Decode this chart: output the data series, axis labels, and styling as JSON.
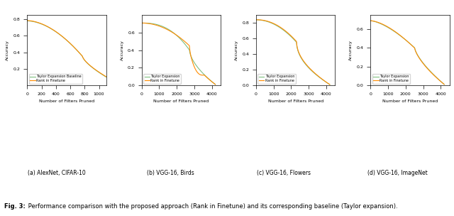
{
  "fig_width": 6.4,
  "fig_height": 3.04,
  "dpi": 100,
  "subplots": [
    {
      "title": "(a) AlexNet, CIFAR-10",
      "xlabel": "Number of Filters Pruned",
      "ylabel": "Accuracy",
      "xlim": [
        0,
        1100
      ],
      "ylim": [
        0.0,
        0.85
      ],
      "xticks": [
        0,
        200,
        400,
        600,
        800,
        1000
      ],
      "yticks": [
        0.2,
        0.4,
        0.6,
        0.8
      ],
      "lines": [
        {
          "label": "Taylor Expansion Baseline",
          "color": "#7fbf7f",
          "x_start": 0,
          "x_end": 1100,
          "y_start": 0.78,
          "y_end": 0.1,
          "shape": "concave_down"
        },
        {
          "label": "Rank in Finetune",
          "color": "#ff8c00",
          "x_start": 0,
          "x_end": 1100,
          "y_start": 0.78,
          "y_end": 0.1,
          "shape": "concave_down_slight_higher"
        }
      ]
    },
    {
      "title": "(b) VGG-16, Birds",
      "xlabel": "Number of Filters Pruned",
      "ylabel": "Accuracy",
      "xlim": [
        0,
        4500
      ],
      "ylim": [
        0.0,
        0.8
      ],
      "xticks": [
        0,
        1000,
        2000,
        3000,
        4000
      ],
      "yticks": [
        0.0,
        0.2,
        0.4,
        0.6
      ],
      "lines": [
        {
          "label": "Taylor Expansion",
          "color": "#7fbf7f",
          "x_start": 0,
          "x_end": 4200,
          "y_start": 0.71,
          "y_end": 0.01,
          "shape": "vgg_birds_taylor"
        },
        {
          "label": "Rank in Finetune",
          "color": "#ff8c00",
          "x_start": 0,
          "x_end": 4200,
          "y_start": 0.71,
          "y_end": 0.01,
          "shape": "vgg_birds_rank"
        }
      ]
    },
    {
      "title": "(c) VGG-16, Flowers",
      "xlabel": "Number of Filters Pruned",
      "ylabel": "Accuracy",
      "xlim": [
        0,
        4500
      ],
      "ylim": [
        0.0,
        0.9
      ],
      "xticks": [
        0,
        1000,
        2000,
        3000,
        4000
      ],
      "yticks": [
        0.0,
        0.2,
        0.4,
        0.6,
        0.8
      ],
      "lines": [
        {
          "label": "Taylor Expansion",
          "color": "#7fbf7f",
          "x_start": 0,
          "x_end": 4200,
          "y_start": 0.84,
          "y_end": 0.01,
          "shape": "vgg_flowers_taylor"
        },
        {
          "label": "Rank in Finetune",
          "color": "#ff8c00",
          "x_start": 0,
          "x_end": 4200,
          "y_start": 0.84,
          "y_end": 0.01,
          "shape": "vgg_flowers_rank"
        }
      ]
    },
    {
      "title": "(d) VGG-16, ImageNet",
      "xlabel": "Number of Filters Pruned",
      "ylabel": "Accuracy",
      "xlim": [
        0,
        4500
      ],
      "ylim": [
        0.0,
        0.75
      ],
      "xticks": [
        0,
        1000,
        2000,
        3000,
        4000
      ],
      "yticks": [
        0.0,
        0.2,
        0.4,
        0.6
      ],
      "lines": [
        {
          "label": "Taylor Expansion",
          "color": "#7fbf7f",
          "x_start": 0,
          "x_end": 4200,
          "y_start": 0.69,
          "y_end": 0.01,
          "shape": "vgg_imagenet_taylor"
        },
        {
          "label": "Rank in Finetune",
          "color": "#ff8c00",
          "x_start": 0,
          "x_end": 4200,
          "y_start": 0.69,
          "y_end": 0.01,
          "shape": "vgg_imagenet_rank"
        }
      ]
    }
  ],
  "fig_caption": "Fig. 3: Performance comparison with the proposed approach (Rank in Finetune) and its corresponding baseline (Taylor expansion).",
  "caption_fontsize": 6.5
}
